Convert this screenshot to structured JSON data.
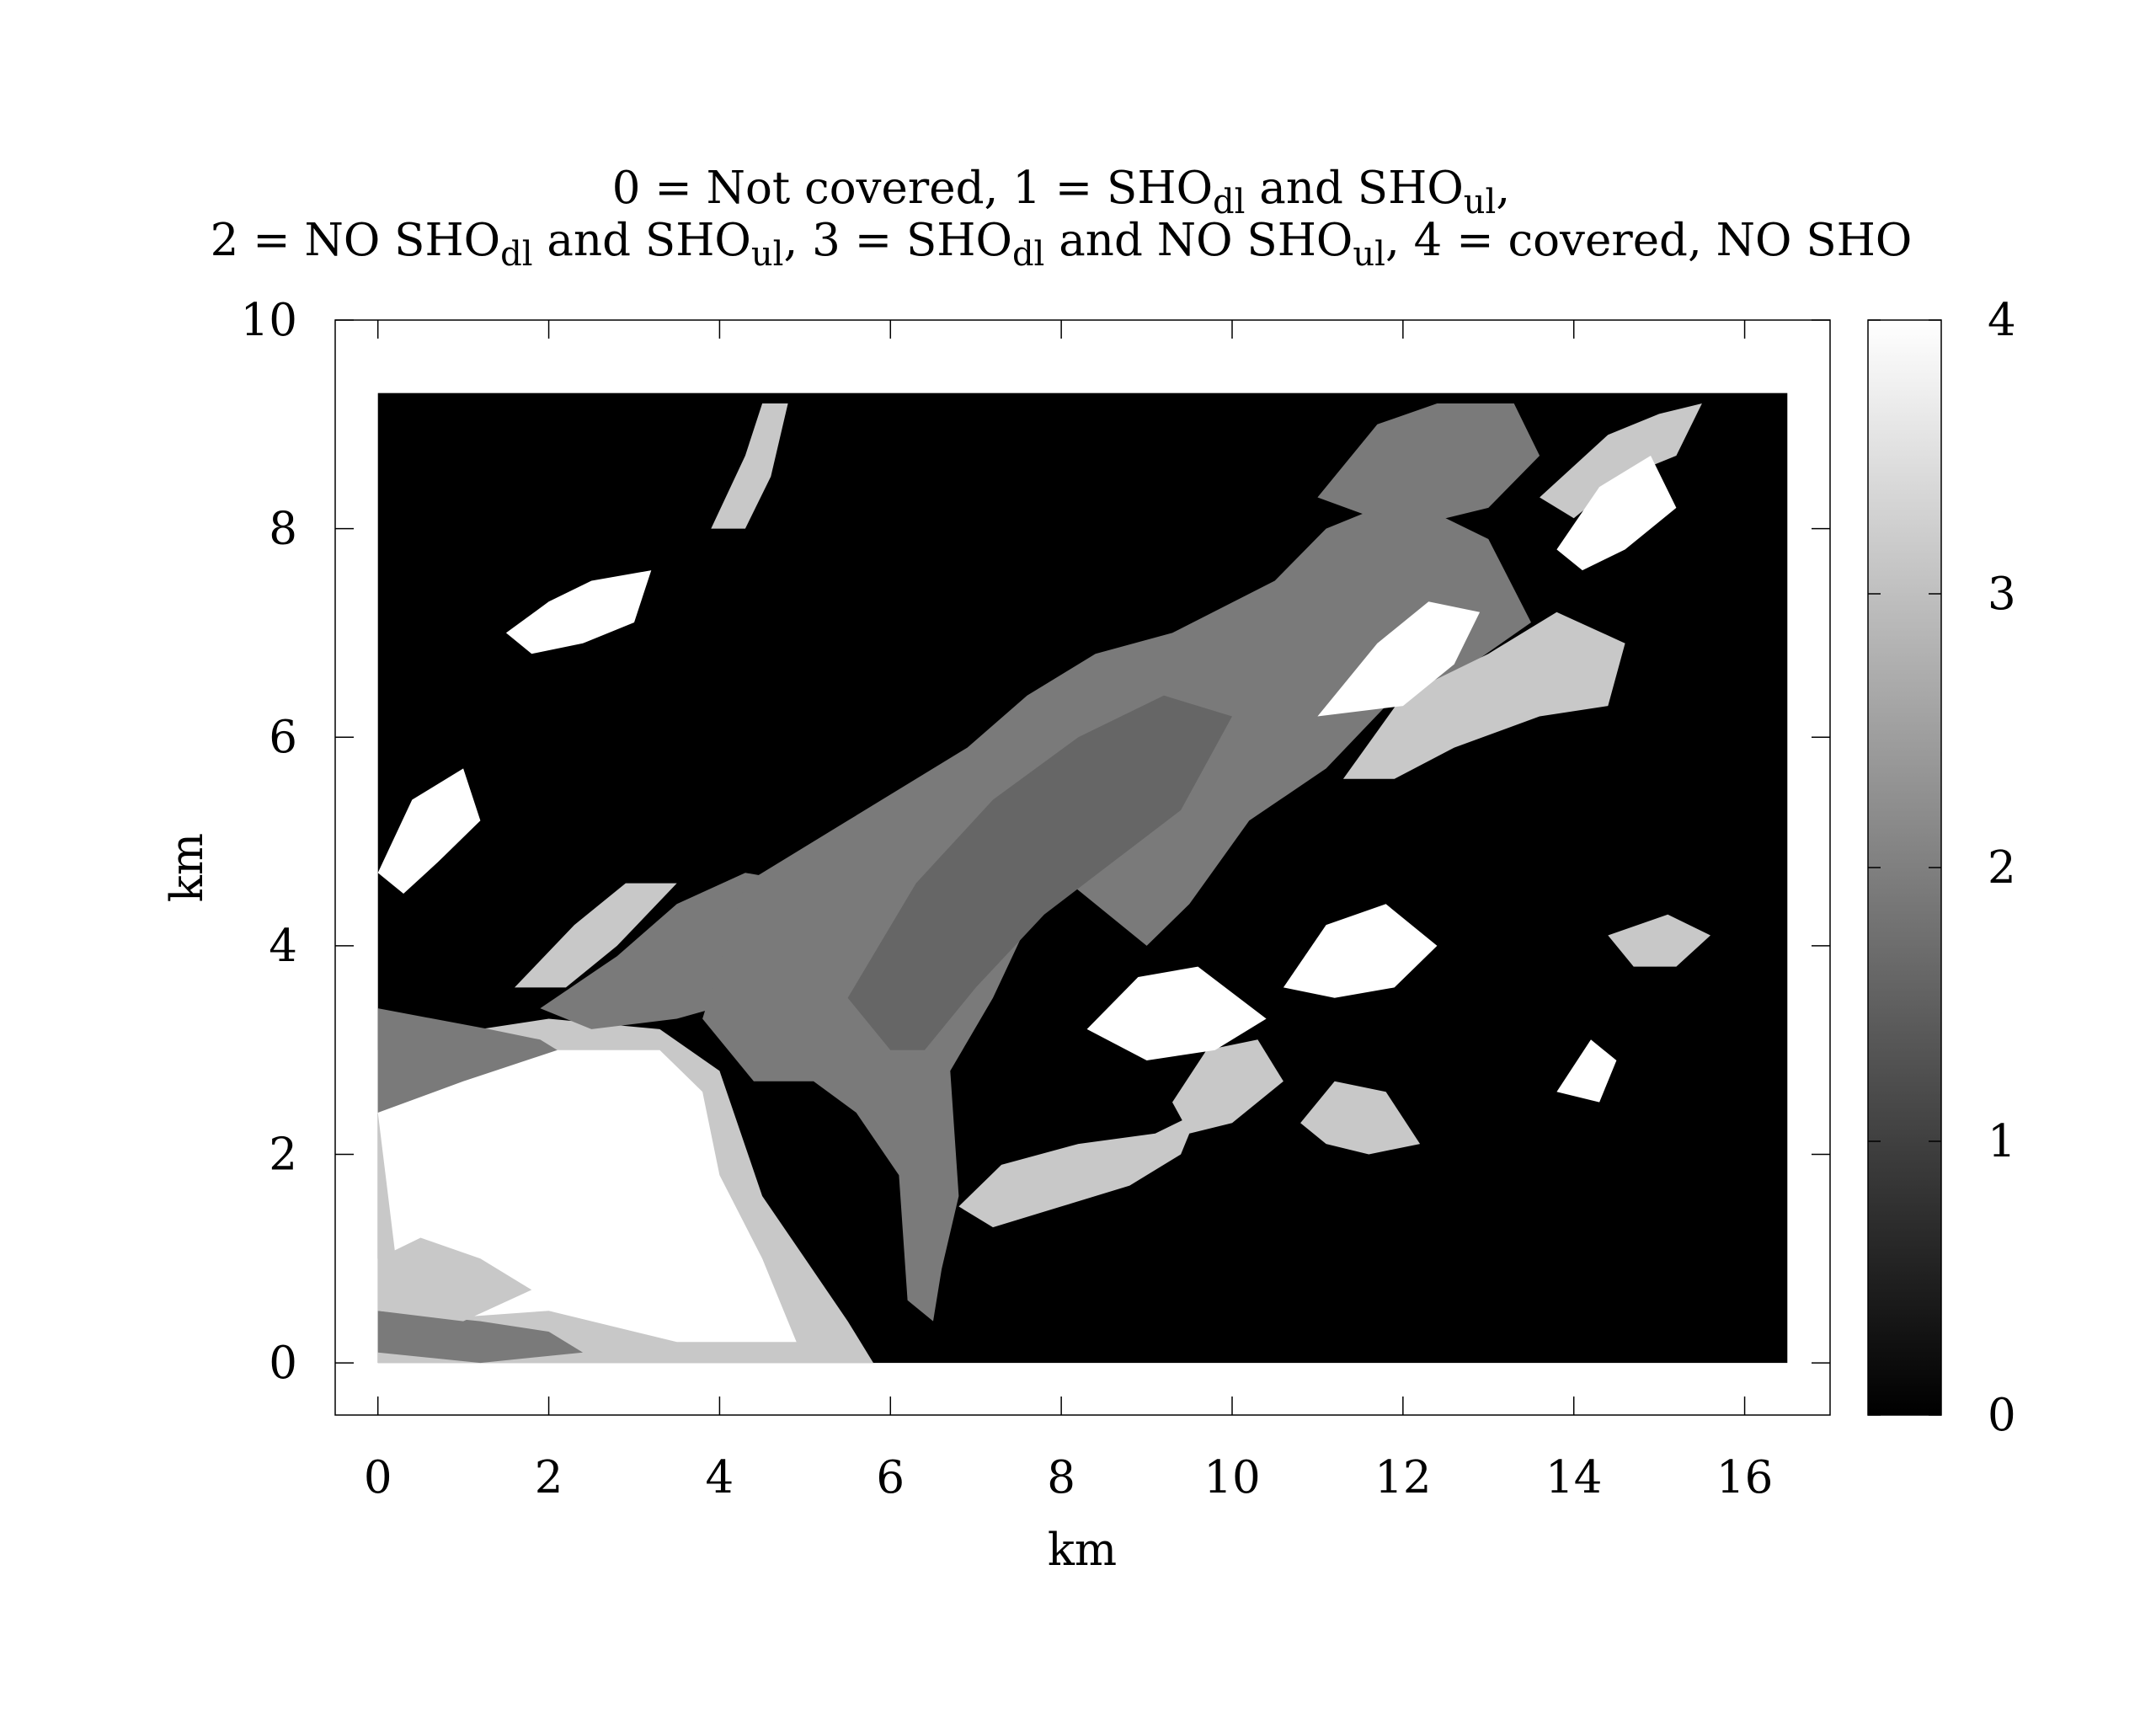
{
  "chart_data": {
    "type": "heatmap",
    "title": {
      "line1": [
        {
          "t": "0 = Not covered, 1 = SHO"
        },
        {
          "t": "dl",
          "sub": true
        },
        {
          "t": " and SHO"
        },
        {
          "t": "ul",
          "sub": true
        },
        {
          "t": ","
        }
      ],
      "line2": [
        {
          "t": "2 = NO SHO"
        },
        {
          "t": "dl",
          "sub": true
        },
        {
          "t": " and SHO"
        },
        {
          "t": "ul",
          "sub": true
        },
        {
          "t": ", 3 = SHO"
        },
        {
          "t": "dl",
          "sub": true
        },
        {
          "t": " and NO SHO"
        },
        {
          "t": "ul",
          "sub": true
        },
        {
          "t": ", 4 = covered, NO SHO"
        }
      ]
    },
    "xlabel": "km",
    "ylabel": "km",
    "xlim": [
      -0.5,
      17.0
    ],
    "ylim": [
      -0.5,
      10.0
    ],
    "xticks": [
      0,
      2,
      4,
      6,
      8,
      10,
      12,
      14,
      16
    ],
    "yticks": [
      0,
      2,
      4,
      6,
      8,
      10
    ],
    "grid": false,
    "data_extent": {
      "x": [
        0,
        16.5
      ],
      "y": [
        0,
        9.3
      ]
    },
    "colorbar": {
      "range": [
        0,
        4
      ],
      "ticks": [
        0,
        1,
        2,
        3,
        4
      ],
      "colormap": "grayscale",
      "low_color": "#000000",
      "high_color": "#ffffff"
    },
    "levels": [
      {
        "value": 0,
        "meaning": "Not covered",
        "color": "#000000"
      },
      {
        "value": 1,
        "meaning": "SHO dl and SHO ul",
        "color": "#666666"
      },
      {
        "value": 2,
        "meaning": "NO SHO dl and SHO ul",
        "color": "#7a7a7a"
      },
      {
        "value": 3,
        "meaning": "SHO dl and NO SHO ul",
        "color": "#c8c8c8"
      },
      {
        "value": 4,
        "meaning": "covered, NO SHO",
        "color": "#ffffff"
      }
    ],
    "regions": [
      {
        "value": 3,
        "polygon": [
          [
            0,
            0
          ],
          [
            0,
            3.0
          ],
          [
            1.2,
            3.2
          ],
          [
            2.0,
            3.3
          ],
          [
            3.3,
            3.2
          ],
          [
            4.0,
            2.8
          ],
          [
            4.5,
            1.6
          ],
          [
            5.0,
            1.0
          ],
          [
            5.5,
            0.4
          ],
          [
            5.8,
            0
          ],
          [
            3.3,
            0
          ]
        ]
      },
      {
        "value": 4,
        "polygon": [
          [
            0.3,
            0.4
          ],
          [
            0,
            2.4
          ],
          [
            0.9,
            2.9
          ],
          [
            2.0,
            3.0
          ],
          [
            3.3,
            3.0
          ],
          [
            3.8,
            2.6
          ],
          [
            4.0,
            1.8
          ],
          [
            4.5,
            1.0
          ],
          [
            4.9,
            0.2
          ],
          [
            3.5,
            0.2
          ],
          [
            2.0,
            0.5
          ]
        ]
      },
      {
        "value": 2,
        "polygon": [
          [
            0,
            2.4
          ],
          [
            0,
            3.4
          ],
          [
            1.3,
            3.2
          ],
          [
            1.9,
            3.1
          ],
          [
            2.1,
            3.0
          ],
          [
            1.0,
            2.7
          ]
        ]
      },
      {
        "value": 2,
        "polygon": [
          [
            0,
            0.1
          ],
          [
            0,
            0.5
          ],
          [
            1.2,
            0.4
          ],
          [
            2.0,
            0.3
          ],
          [
            2.4,
            0.1
          ],
          [
            1.2,
            0.0
          ]
        ]
      },
      {
        "value": 2,
        "polygon": [
          [
            1.9,
            3.4
          ],
          [
            2.8,
            3.9
          ],
          [
            3.5,
            4.4
          ],
          [
            4.3,
            4.7
          ],
          [
            5.0,
            4.6
          ],
          [
            5.6,
            4.2
          ],
          [
            4.8,
            3.6
          ],
          [
            3.5,
            3.3
          ],
          [
            2.5,
            3.2
          ]
        ]
      },
      {
        "value": 3,
        "polygon": [
          [
            0.0,
            0.5
          ],
          [
            0,
            1.0
          ],
          [
            0.5,
            1.2
          ],
          [
            1.2,
            1.0
          ],
          [
            1.8,
            0.7
          ],
          [
            1.0,
            0.4
          ]
        ]
      },
      {
        "value": 3,
        "polygon": [
          [
            1.6,
            3.6
          ],
          [
            2.3,
            4.2
          ],
          [
            2.9,
            4.6
          ],
          [
            3.5,
            4.6
          ],
          [
            2.8,
            4.0
          ],
          [
            2.2,
            3.6
          ]
        ]
      },
      {
        "value": 2,
        "polygon": [
          [
            3.8,
            3.3
          ],
          [
            4.3,
            4.6
          ],
          [
            5.5,
            5.2
          ],
          [
            6.9,
            5.9
          ],
          [
            7.6,
            6.4
          ],
          [
            8.4,
            6.8
          ],
          [
            9.3,
            7.0
          ],
          [
            10.5,
            7.5
          ],
          [
            11.1,
            8.0
          ],
          [
            12.0,
            8.3
          ],
          [
            13.0,
            7.9
          ],
          [
            13.5,
            7.1
          ],
          [
            12.8,
            6.7
          ],
          [
            11.8,
            6.3
          ],
          [
            11.1,
            5.7
          ],
          [
            10.2,
            5.2
          ],
          [
            9.5,
            4.4
          ],
          [
            9.0,
            4.0
          ],
          [
            8.1,
            4.6
          ],
          [
            7.6,
            4.2
          ],
          [
            7.2,
            3.5
          ],
          [
            6.7,
            2.8
          ],
          [
            6.8,
            1.6
          ],
          [
            6.6,
            0.9
          ],
          [
            6.5,
            0.4
          ],
          [
            6.2,
            0.6
          ],
          [
            6.1,
            1.8
          ],
          [
            5.6,
            2.4
          ],
          [
            5.1,
            2.7
          ],
          [
            4.4,
            2.7
          ]
        ]
      },
      {
        "value": 1,
        "polygon": [
          [
            5.5,
            3.5
          ],
          [
            6.3,
            4.6
          ],
          [
            7.2,
            5.4
          ],
          [
            8.2,
            6.0
          ],
          [
            9.2,
            6.4
          ],
          [
            10.0,
            6.2
          ],
          [
            9.4,
            5.3
          ],
          [
            8.6,
            4.8
          ],
          [
            7.8,
            4.3
          ],
          [
            7.0,
            3.6
          ],
          [
            6.4,
            3.0
          ],
          [
            6.0,
            3.0
          ]
        ]
      },
      {
        "value": 2,
        "polygon": [
          [
            11.0,
            8.3
          ],
          [
            11.7,
            9.0
          ],
          [
            12.4,
            9.2
          ],
          [
            13.3,
            9.2
          ],
          [
            13.6,
            8.7
          ],
          [
            13.0,
            8.2
          ],
          [
            12.0,
            8.0
          ]
        ]
      },
      {
        "value": 3,
        "polygon": [
          [
            11.3,
            5.6
          ],
          [
            12.0,
            6.4
          ],
          [
            13.0,
            6.8
          ],
          [
            13.8,
            7.2
          ],
          [
            14.6,
            6.9
          ],
          [
            14.4,
            6.3
          ],
          [
            13.6,
            6.2
          ],
          [
            12.6,
            5.9
          ],
          [
            11.9,
            5.6
          ]
        ]
      },
      {
        "value": 4,
        "polygon": [
          [
            11.0,
            6.2
          ],
          [
            11.7,
            6.9
          ],
          [
            12.3,
            7.3
          ],
          [
            12.9,
            7.2
          ],
          [
            12.6,
            6.7
          ],
          [
            12.0,
            6.3
          ]
        ]
      },
      {
        "value": 3,
        "polygon": [
          [
            6.8,
            1.5
          ],
          [
            7.3,
            1.9
          ],
          [
            8.2,
            2.1
          ],
          [
            9.1,
            2.2
          ],
          [
            9.6,
            2.4
          ],
          [
            9.4,
            2.0
          ],
          [
            8.8,
            1.7
          ],
          [
            8.0,
            1.5
          ],
          [
            7.2,
            1.3
          ]
        ]
      },
      {
        "value": 3,
        "polygon": [
          [
            9.3,
            2.5
          ],
          [
            9.7,
            3.0
          ],
          [
            10.3,
            3.1
          ],
          [
            10.6,
            2.7
          ],
          [
            10.0,
            2.3
          ],
          [
            9.5,
            2.2
          ]
        ]
      },
      {
        "value": 3,
        "polygon": [
          [
            10.8,
            2.3
          ],
          [
            11.2,
            2.7
          ],
          [
            11.8,
            2.6
          ],
          [
            12.2,
            2.1
          ],
          [
            11.6,
            2.0
          ],
          [
            11.1,
            2.1
          ]
        ]
      },
      {
        "value": 4,
        "polygon": [
          [
            8.3,
            3.2
          ],
          [
            8.9,
            3.7
          ],
          [
            9.6,
            3.8
          ],
          [
            10.4,
            3.3
          ],
          [
            9.8,
            3.0
          ],
          [
            9.0,
            2.9
          ]
        ]
      },
      {
        "value": 4,
        "polygon": [
          [
            10.6,
            3.6
          ],
          [
            11.1,
            4.2
          ],
          [
            11.8,
            4.4
          ],
          [
            12.4,
            4.0
          ],
          [
            11.9,
            3.6
          ],
          [
            11.2,
            3.5
          ]
        ]
      },
      {
        "value": 3,
        "polygon": [
          [
            3.9,
            8.0
          ],
          [
            4.3,
            8.7
          ],
          [
            4.5,
            9.2
          ],
          [
            4.8,
            9.2
          ],
          [
            4.6,
            8.5
          ],
          [
            4.3,
            8.0
          ]
        ]
      },
      {
        "value": 4,
        "polygon": [
          [
            1.5,
            7.0
          ],
          [
            2.0,
            7.3
          ],
          [
            2.5,
            7.5
          ],
          [
            3.2,
            7.6
          ],
          [
            3.0,
            7.1
          ],
          [
            2.4,
            6.9
          ],
          [
            1.8,
            6.8
          ]
        ]
      },
      {
        "value": 3,
        "polygon": [
          [
            13.6,
            8.3
          ],
          [
            14.4,
            8.9
          ],
          [
            15.0,
            9.1
          ],
          [
            15.5,
            9.2
          ],
          [
            15.2,
            8.7
          ],
          [
            14.6,
            8.5
          ],
          [
            14.0,
            8.1
          ]
        ]
      },
      {
        "value": 4,
        "polygon": [
          [
            13.8,
            7.8
          ],
          [
            14.3,
            8.4
          ],
          [
            14.9,
            8.7
          ],
          [
            15.2,
            8.2
          ],
          [
            14.6,
            7.8
          ],
          [
            14.1,
            7.6
          ]
        ]
      },
      {
        "value": 4,
        "polygon": [
          [
            0,
            4.7
          ],
          [
            0.4,
            5.4
          ],
          [
            1.0,
            5.7
          ],
          [
            1.2,
            5.2
          ],
          [
            0.7,
            4.8
          ],
          [
            0.3,
            4.5
          ]
        ]
      },
      {
        "value": 3,
        "polygon": [
          [
            14.4,
            4.1
          ],
          [
            15.1,
            4.3
          ],
          [
            15.6,
            4.1
          ],
          [
            15.2,
            3.8
          ],
          [
            14.7,
            3.8
          ]
        ]
      },
      {
        "value": 4,
        "polygon": [
          [
            13.8,
            2.6
          ],
          [
            14.2,
            3.1
          ],
          [
            14.5,
            2.9
          ],
          [
            14.3,
            2.5
          ]
        ]
      }
    ]
  }
}
